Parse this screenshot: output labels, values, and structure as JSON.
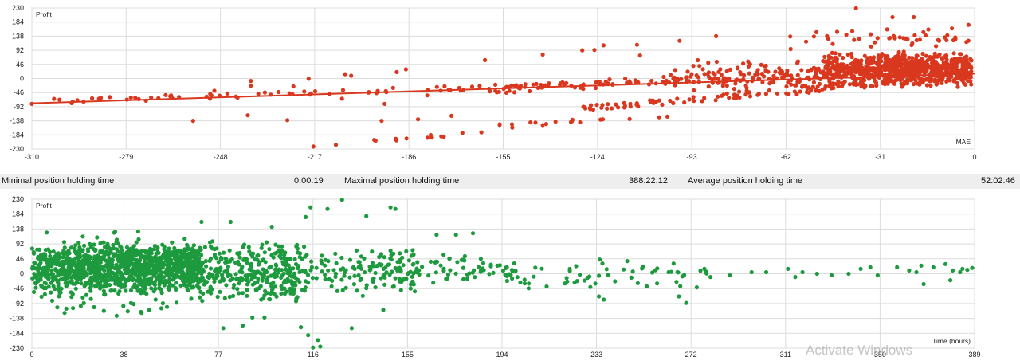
{
  "stats": {
    "min_label": "Minimal position holding time",
    "min_value": "0:00:19",
    "max_label": "Maximal position holding time",
    "max_value": "388:22:12",
    "avg_label": "Average position holding time",
    "avg_value": "52:02:46"
  },
  "watermark": "Activate Windows",
  "chart_data": [
    {
      "type": "scatter",
      "ylabel": "Profit",
      "xlabel": "MAE",
      "color": "#d9381e",
      "x_ticks": [
        -310,
        -279,
        -248,
        -217,
        -186,
        -155,
        -124,
        -93,
        -62,
        -31,
        0
      ],
      "y_ticks": [
        230,
        184,
        138,
        92,
        46,
        0,
        -46,
        -92,
        -138,
        -184,
        -230
      ],
      "xlim": [
        -310,
        0
      ],
      "ylim": [
        -230,
        230
      ],
      "grid": true,
      "trendline": {
        "from": [
          -310,
          -81
        ],
        "to": [
          0,
          16
        ]
      },
      "series": [
        {
          "bands": [
            {
              "x_from": -305,
              "x_to": -5,
              "y_start": -75,
              "y_end": 20,
              "noise": 8,
              "n": 110
            },
            {
              "x_from": -160,
              "x_to": -3,
              "y_start": -40,
              "y_end": 55,
              "noise": 14,
              "n": 120
            },
            {
              "x_from": -130,
              "x_to": -2,
              "y_start": -100,
              "y_end": 10,
              "noise": 10,
              "n": 110
            },
            {
              "x_from": -220,
              "x_to": -160,
              "y_start": -228,
              "y_end": -170,
              "noise": 6,
              "n": 14
            },
            {
              "x_from": -160,
              "x_to": -100,
              "y_start": -155,
              "y_end": -120,
              "noise": 6,
              "n": 16
            }
          ],
          "clusters": [
            {
              "x_from": -50,
              "x_to": -1,
              "y_from": -30,
              "y_to": 90,
              "n": 700
            },
            {
              "x_from": -62,
              "x_to": -2,
              "y_from": 90,
              "y_to": 170,
              "n": 45
            },
            {
              "x_from": -100,
              "x_to": -50,
              "y_from": -70,
              "y_to": 70,
              "n": 120
            }
          ],
          "extra_points": [
            [
              -310,
              -83
            ],
            [
              -293,
              -76
            ],
            [
              -276,
              -63
            ],
            [
              -266,
              -54
            ],
            [
              -250,
              -40
            ],
            [
              -238,
              -24
            ],
            [
              -224,
              -26
            ],
            [
              -219,
              -1
            ],
            [
              -205,
              9
            ],
            [
              -187,
              30
            ],
            [
              -190,
              21
            ],
            [
              -161,
              60
            ],
            [
              -142,
              78
            ],
            [
              -129,
              92
            ],
            [
              -125,
              93
            ],
            [
              -97,
              123
            ],
            [
              -85,
              138
            ],
            [
              -39,
              229
            ],
            [
              -27,
              200
            ],
            [
              -20,
              200
            ],
            [
              -12,
              125
            ],
            [
              -2,
              175
            ],
            [
              -122,
              108
            ],
            [
              -111,
              110
            ],
            [
              -110,
              75
            ],
            [
              -226,
              -136
            ],
            [
              -239,
              -120
            ],
            [
              -208,
              -66
            ],
            [
              -194,
              -83
            ],
            [
              -180,
              -55
            ],
            [
              -150,
              -30
            ],
            [
              -135,
              -20
            ],
            [
              -183,
              -133
            ],
            [
              -172,
              -122
            ],
            [
              -195,
              -138
            ],
            [
              -142,
              -152
            ],
            [
              -152,
              -160
            ],
            [
              -257,
              -138
            ],
            [
              -238,
              -8
            ],
            [
              -207,
              14
            ]
          ]
        }
      ]
    },
    {
      "type": "scatter",
      "ylabel": "Profit",
      "xlabel": "Time (hours)",
      "color": "#1e9a3e",
      "x_ticks": [
        0,
        38,
        77,
        116,
        155,
        194,
        233,
        272,
        311,
        350,
        389
      ],
      "y_ticks": [
        230,
        184,
        138,
        92,
        46,
        0,
        -46,
        -92,
        -138,
        -184,
        -230
      ],
      "xlim": [
        0,
        389
      ],
      "ylim": [
        -230,
        230
      ],
      "grid": true,
      "series": [
        {
          "clusters": [
            {
              "x_from": 0,
              "x_to": 70,
              "y_from": -60,
              "y_to": 100,
              "n": 1000
            },
            {
              "x_from": 0,
              "x_to": 60,
              "y_from": -140,
              "y_to": 140,
              "n": 220
            },
            {
              "x_from": 60,
              "x_to": 110,
              "y_from": -100,
              "y_to": 110,
              "n": 320
            },
            {
              "x_from": 100,
              "x_to": 160,
              "y_from": -70,
              "y_to": 90,
              "n": 170
            },
            {
              "x_from": 150,
              "x_to": 200,
              "y_from": -40,
              "y_to": 70,
              "n": 70
            },
            {
              "x_from": 195,
              "x_to": 280,
              "y_from": -55,
              "y_to": 55,
              "n": 55
            }
          ],
          "extra_points": [
            [
              128,
              228
            ],
            [
              122,
              200
            ],
            [
              115,
              205
            ],
            [
              148,
              205
            ],
            [
              150,
              200
            ],
            [
              82,
              160
            ],
            [
              113,
              175
            ],
            [
              138,
              178
            ],
            [
              182,
              125
            ],
            [
              175,
              120
            ],
            [
              167,
              120
            ],
            [
              70,
              160
            ],
            [
              99,
              145
            ],
            [
              91,
              -135
            ],
            [
              87,
              -160
            ],
            [
              79,
              -168
            ],
            [
              118,
              -205
            ],
            [
              114,
              -190
            ],
            [
              119,
              -225
            ],
            [
              116,
              -228
            ],
            [
              111,
              -165
            ],
            [
              145,
              -112
            ],
            [
              132,
              -168
            ],
            [
              96,
              -135
            ],
            [
              35,
              -130
            ],
            [
              45,
              -118
            ],
            [
              205,
              -45
            ],
            [
              220,
              -30
            ],
            [
              234,
              -70
            ],
            [
              236,
              -80
            ],
            [
              258,
              -30
            ],
            [
              266,
              -25
            ],
            [
              267,
              -70
            ],
            [
              270,
              -90
            ],
            [
              280,
              -10
            ],
            [
              288,
              -5
            ],
            [
              297,
              5
            ],
            [
              303,
              5
            ],
            [
              318,
              5
            ],
            [
              324,
              0
            ],
            [
              330,
              -5
            ],
            [
              337,
              0
            ],
            [
              342,
              15
            ],
            [
              346,
              20
            ],
            [
              349,
              -5
            ],
            [
              357,
              20
            ],
            [
              367,
              25
            ],
            [
              368,
              -32
            ],
            [
              372,
              20
            ],
            [
              362,
              10
            ],
            [
              365,
              5
            ],
            [
              377,
              30
            ],
            [
              379,
              -20
            ],
            [
              383,
              5
            ],
            [
              388,
              18
            ],
            [
              380,
              10
            ],
            [
              384,
              15
            ],
            [
              386,
              12
            ],
            [
              315,
              -10
            ],
            [
              312,
              15
            ]
          ]
        }
      ]
    }
  ]
}
